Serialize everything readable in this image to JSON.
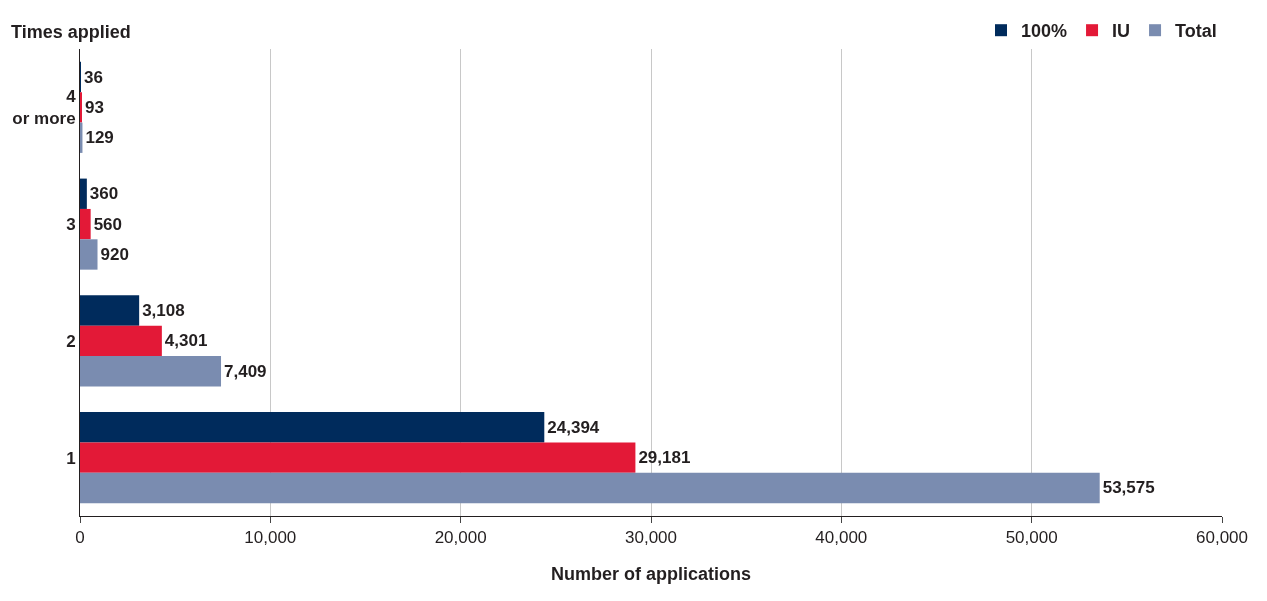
{
  "chart_data": {
    "type": "bar",
    "orientation": "horizontal",
    "ylabel": "Times applied",
    "xlabel": "Number of applications",
    "categories": [
      "4 or more",
      "3",
      "2",
      "1"
    ],
    "series": [
      {
        "name": "100%",
        "color": "#002b5c",
        "values": [
          36,
          360,
          3108,
          24394
        ],
        "value_labels": [
          "36",
          "360",
          "3,108",
          "24,394"
        ]
      },
      {
        "name": "IU",
        "color": "#e31937",
        "values": [
          93,
          560,
          4301,
          29181
        ],
        "value_labels": [
          "93",
          "560",
          "4,301",
          "29,181"
        ]
      },
      {
        "name": "Total",
        "color": "#7a8cb0",
        "values": [
          129,
          920,
          7409,
          53575
        ],
        "value_labels": [
          "129",
          "920",
          "7,409",
          "53,575"
        ]
      }
    ],
    "xlim": [
      0,
      60000
    ],
    "xticks": [
      0,
      {
        "value": 10000,
        "label": "10,000"
      },
      {
        "value": 20000,
        "label": "20,000"
      },
      {
        "value": 30000,
        "label": "30,000"
      },
      {
        "value": 40000,
        "label": "40,000"
      },
      {
        "value": 50000,
        "label": "50,000"
      },
      {
        "value": 60000,
        "label": "60,000"
      }
    ],
    "grid": "x",
    "legend": "top right"
  }
}
